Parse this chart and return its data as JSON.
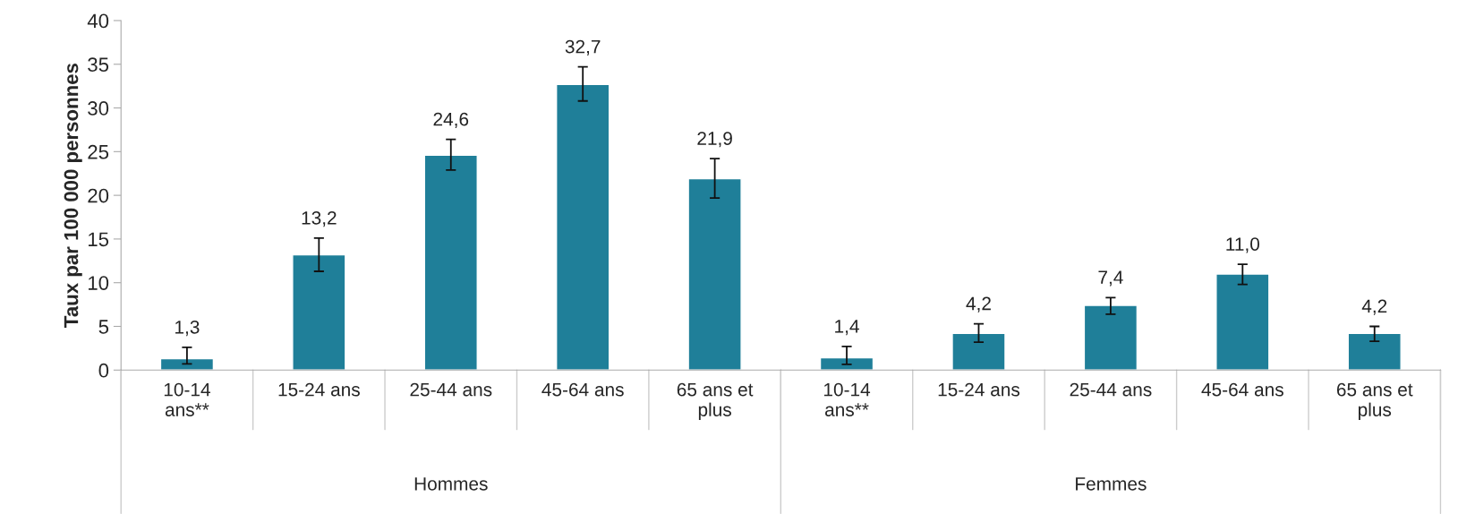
{
  "chart_data": {
    "type": "bar",
    "categories": [
      "10-14\nans**",
      "15-24 ans",
      "25-44 ans",
      "45-64 ans",
      "65 ans et\nplus",
      "10-14\nans**",
      "15-24 ans",
      "25-44 ans",
      "45-64 ans",
      "65 ans et\nplus"
    ],
    "values": [
      1.3,
      13.2,
      24.6,
      32.7,
      21.9,
      1.4,
      4.2,
      7.4,
      11.0,
      4.2
    ],
    "errors": [
      [
        0.7,
        2.6
      ],
      [
        11.3,
        15.1
      ],
      [
        22.9,
        26.4
      ],
      [
        30.8,
        34.7
      ],
      [
        19.7,
        24.2
      ],
      [
        0.65,
        2.7
      ],
      [
        3.2,
        5.3
      ],
      [
        6.4,
        8.3
      ],
      [
        9.8,
        12.1
      ],
      [
        3.3,
        5.0
      ]
    ],
    "value_labels": [
      "1,3",
      "13,2",
      "24,6",
      "32,7",
      "21,9",
      "1,4",
      "4,2",
      "7,4",
      "11,0",
      "4,2"
    ],
    "color": "#1f7f99",
    "ylabel": "Taux par 100 000 personnes",
    "ylim": [
      0,
      40
    ],
    "yticks": [
      0,
      5,
      10,
      15,
      20,
      25,
      30,
      35,
      40
    ],
    "annotations": [
      "Hommes",
      "Femmes"
    ],
    "grid": false,
    "legend": false
  }
}
